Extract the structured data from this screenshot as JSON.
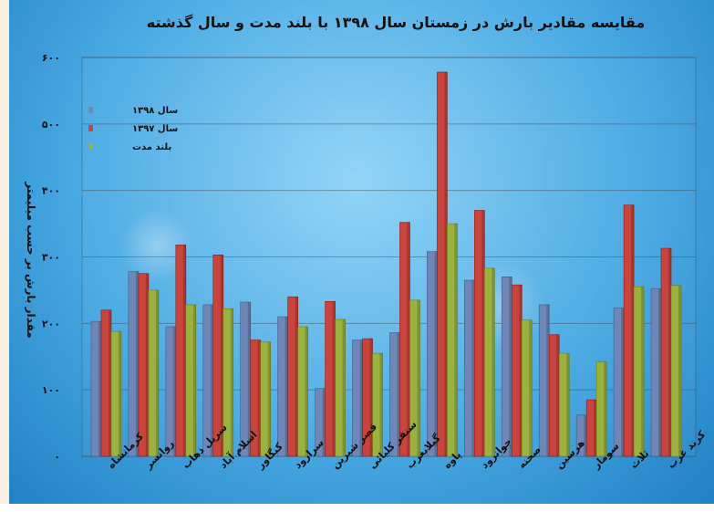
{
  "chart_data": {
    "type": "bar",
    "title": "مقایسه مقادیر بارش در زمستان سال ۱۳۹۸ با بلند مدت و سال گذشته",
    "ylabel": "مقدار بارش بر حسب میلیمتر",
    "xlabel": "",
    "ylim": [
      0,
      600
    ],
    "yticks": [
      0,
      100,
      200,
      300,
      400,
      500,
      600
    ],
    "ytick_labels": [
      "۰",
      "۱۰۰",
      "۲۰۰",
      "۳۰۰",
      "۴۰۰",
      "۵۰۰",
      "۶۰۰"
    ],
    "grid": true,
    "legend_position": "top-left",
    "categories": [
      "کرمانشاه",
      "روانسر",
      "سرپل ذهاب",
      "اسلام آباد",
      "کنگاور",
      "سرارود",
      "قصر شیرین",
      "سنقر کلیائی",
      "گیلانغرب",
      "پاوه",
      "جوانرود",
      "صحنه",
      "هرسین",
      "سومار",
      "ثلاث",
      "کرند غرب"
    ],
    "series": [
      {
        "name": "سال ۱۳۹۸",
        "color": "#6f87b8",
        "values": [
          203,
          278,
          195,
          228,
          232,
          210,
          102,
          175,
          186,
          308,
          265,
          270,
          228,
          62,
          223,
          252
        ]
      },
      {
        "name": "سال ۱۳۹۷",
        "color": "#c9443c",
        "values": [
          220,
          275,
          318,
          303,
          175,
          240,
          233,
          177,
          352,
          578,
          370,
          258,
          183,
          85,
          378,
          313
        ]
      },
      {
        "name": "بلند مدت",
        "color": "#9bb240",
        "values": [
          188,
          250,
          228,
          222,
          172,
          195,
          206,
          155,
          235,
          350,
          283,
          205,
          155,
          142,
          255,
          257
        ]
      }
    ]
  }
}
